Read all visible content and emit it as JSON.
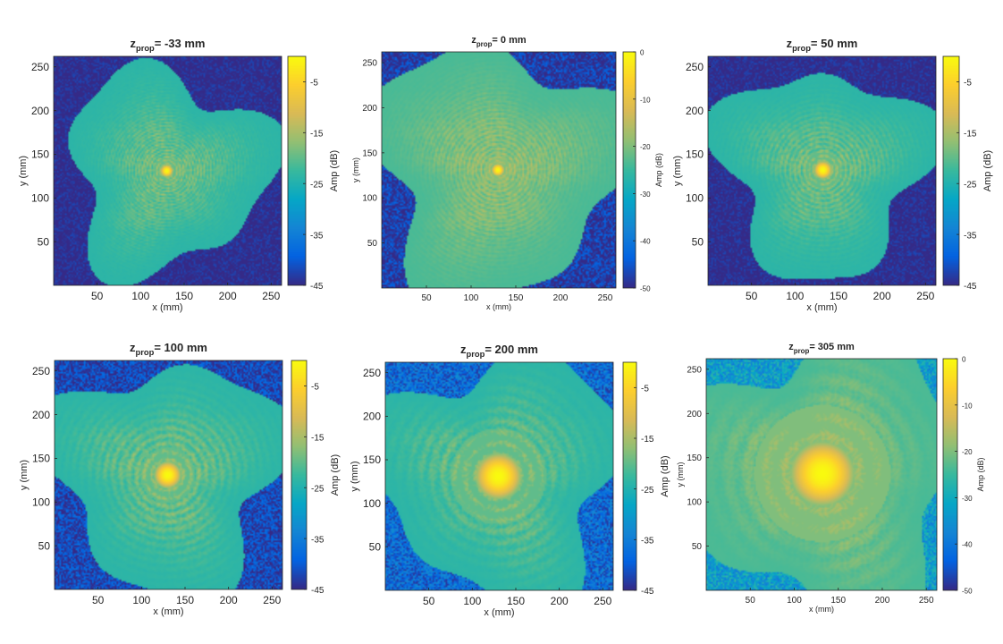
{
  "chart_data": [
    {
      "type": "heatmap",
      "title_main": "z",
      "title_sub": "prop",
      "title_value": "= -33 mm",
      "xlabel": "x (mm)",
      "ylabel": "y (mm)",
      "colorbar_label": "Amp (dB)",
      "xticks": [
        50,
        100,
        150,
        200,
        250
      ],
      "yticks": [
        50,
        100,
        150,
        200,
        250
      ],
      "xlim": [
        0,
        262
      ],
      "ylim": [
        0,
        262
      ],
      "clim": [
        -45,
        0
      ],
      "colorbar_ticks": [
        -5,
        -15,
        -25,
        -35,
        -45
      ],
      "beam_center": [
        130,
        131
      ],
      "spot_radius_mm": 7,
      "halo_radius_mm": 70,
      "ring_count": 8,
      "background_db": -45,
      "noise_db": 3
    },
    {
      "type": "heatmap",
      "title_main": "z",
      "title_sub": "prop",
      "title_value": "= 0 mm",
      "xlabel": "x (mm)",
      "ylabel": "y (mm)",
      "colorbar_label": "Amp (dB)",
      "xticks": [
        50,
        100,
        150,
        200,
        250
      ],
      "yticks": [
        50,
        100,
        150,
        200,
        250
      ],
      "xlim": [
        0,
        262
      ],
      "ylim": [
        0,
        262
      ],
      "clim": [
        -50,
        0
      ],
      "colorbar_ticks": [
        0,
        -10,
        -20,
        -30,
        -40,
        -50
      ],
      "beam_center": [
        130,
        131
      ],
      "spot_radius_mm": 7,
      "halo_radius_mm": 85,
      "ring_count": 8,
      "background_db": -48,
      "noise_db": 5
    },
    {
      "type": "heatmap",
      "title_main": "z",
      "title_sub": "prop",
      "title_value": "= 50 mm",
      "xlabel": "x (mm)",
      "ylabel": "y (mm)",
      "colorbar_label": "Amp (dB)",
      "xticks": [
        50,
        100,
        150,
        200,
        250
      ],
      "yticks": [
        50,
        100,
        150,
        200,
        250
      ],
      "xlim": [
        0,
        262
      ],
      "ylim": [
        0,
        262
      ],
      "clim": [
        -45,
        0
      ],
      "colorbar_ticks": [
        -5,
        -15,
        -25,
        -35,
        -45
      ],
      "beam_center": [
        132,
        132
      ],
      "spot_radius_mm": 10,
      "halo_radius_mm": 72,
      "ring_count": 6,
      "background_db": -45,
      "noise_db": 3
    },
    {
      "type": "heatmap",
      "title_main": "z",
      "title_sub": "prop",
      "title_value": "= 100 mm",
      "xlabel": "x (mm)",
      "ylabel": "y (mm)",
      "colorbar_label": "Amp (dB)",
      "xticks": [
        50,
        100,
        150,
        200,
        250
      ],
      "yticks": [
        50,
        100,
        150,
        200,
        250
      ],
      "xlim": [
        0,
        262
      ],
      "ylim": [
        0,
        262
      ],
      "clim": [
        -45,
        0
      ],
      "colorbar_ticks": [
        -5,
        -15,
        -25,
        -35,
        -45
      ],
      "beam_center": [
        130,
        131
      ],
      "spot_radius_mm": 15,
      "halo_radius_mm": 80,
      "ring_count": 4,
      "background_db": -42,
      "noise_db": 5
    },
    {
      "type": "heatmap",
      "title_main": "z",
      "title_sub": "prop",
      "title_value": "= 200 mm",
      "xlabel": "x (mm)",
      "ylabel": "y (mm)",
      "colorbar_label": "Amp (dB)",
      "xticks": [
        50,
        100,
        150,
        200,
        250
      ],
      "yticks": [
        50,
        100,
        150,
        200,
        250
      ],
      "xlim": [
        0,
        262
      ],
      "ylim": [
        0,
        262
      ],
      "clim": [
        -45,
        0
      ],
      "colorbar_ticks": [
        -5,
        -15,
        -25,
        -35,
        -45
      ],
      "beam_center": [
        130,
        131
      ],
      "spot_radius_mm": 26,
      "halo_radius_mm": 85,
      "ring_count": 3,
      "background_db": -38,
      "noise_db": 6
    },
    {
      "type": "heatmap",
      "title_main": "z",
      "title_sub": "prop",
      "title_value": "= 305 mm",
      "xlabel": "x (mm)",
      "ylabel": "y (mm)",
      "colorbar_label": "Amp (dB)",
      "xticks": [
        50,
        100,
        150,
        200,
        250
      ],
      "yticks": [
        50,
        100,
        150,
        200,
        250
      ],
      "xlim": [
        0,
        262
      ],
      "ylim": [
        0,
        262
      ],
      "clim": [
        -50,
        0
      ],
      "colorbar_ticks": [
        0,
        -10,
        -20,
        -30,
        -40,
        -50
      ],
      "beam_center": [
        132,
        132
      ],
      "spot_radius_mm": 36,
      "halo_radius_mm": 95,
      "ring_count": 2,
      "background_db": -33,
      "noise_db": 7
    }
  ],
  "colormap": {
    "name": "parula",
    "stops": [
      "#352a87",
      "#0363e1",
      "#1485d4",
      "#06a7c6",
      "#38b99e",
      "#92bf73",
      "#d9ba56",
      "#fcce2e",
      "#f9fb0e"
    ]
  }
}
